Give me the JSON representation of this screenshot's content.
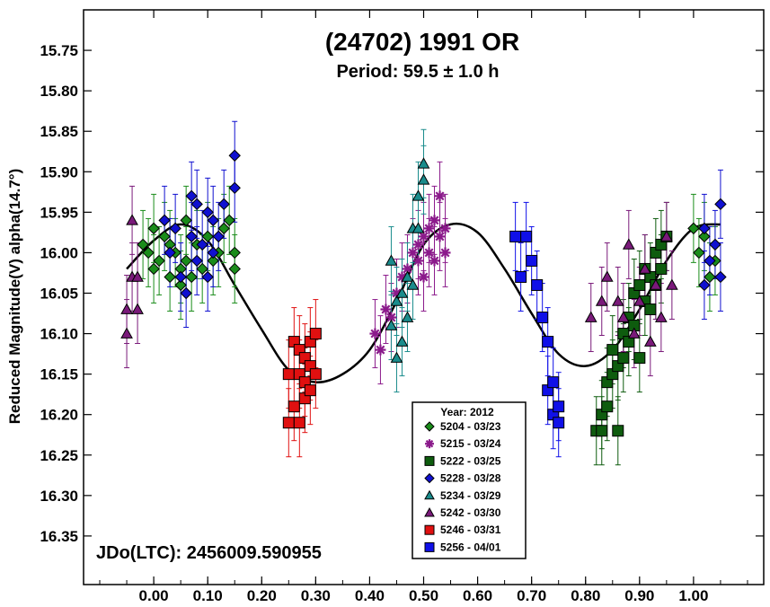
{
  "chart_data": {
    "type": "scatter",
    "title": "(24702) 1991 OR",
    "subtitle": "Period: 59.5 ± 1.0 h",
    "xlabel": "",
    "ylabel": "Reduced Magnitude(V) alpha(14.7°)",
    "annotation": "JDo(LTC): 2456009.590955",
    "xlim": [
      -0.13,
      1.13
    ],
    "ylim": [
      16.41,
      15.7
    ],
    "x_ticks": [
      "0.00",
      "0.10",
      "0.20",
      "0.30",
      "0.40",
      "0.50",
      "0.60",
      "0.70",
      "0.80",
      "0.90",
      "1.00"
    ],
    "y_ticks": [
      "15.75",
      "15.80",
      "15.85",
      "15.90",
      "15.95",
      "16.00",
      "16.05",
      "16.10",
      "16.15",
      "16.20",
      "16.25",
      "16.30",
      "16.35"
    ],
    "grid": false,
    "legend_position": "bottom-right",
    "legend_title": "Year: 2012",
    "fit_curve": {
      "x": [
        -0.05,
        0.0,
        0.05,
        0.1,
        0.15,
        0.2,
        0.25,
        0.3,
        0.35,
        0.4,
        0.45,
        0.5,
        0.55,
        0.6,
        0.65,
        0.7,
        0.75,
        0.8,
        0.85,
        0.9,
        0.95,
        1.0,
        1.05
      ],
      "y": [
        16.02,
        15.985,
        15.965,
        15.985,
        16.04,
        16.095,
        16.145,
        16.16,
        16.15,
        16.12,
        16.06,
        15.99,
        15.965,
        15.975,
        16.02,
        16.075,
        16.125,
        16.14,
        16.12,
        16.07,
        16.01,
        15.97,
        15.965
      ]
    },
    "series": [
      {
        "name": "5204 - 03/23",
        "color": "#1a8c1a",
        "marker": "diamond",
        "points": [
          [
            -0.02,
            15.99
          ],
          [
            -0.01,
            16.0
          ],
          [
            0.0,
            16.02
          ],
          [
            0.0,
            15.97
          ],
          [
            0.01,
            16.01
          ],
          [
            0.02,
            15.98
          ],
          [
            0.03,
            16.03
          ],
          [
            0.03,
            15.99
          ],
          [
            0.04,
            16.0
          ],
          [
            0.05,
            16.02
          ],
          [
            0.05,
            16.04
          ],
          [
            0.06,
            15.96
          ],
          [
            0.06,
            16.01
          ],
          [
            0.07,
            16.03
          ],
          [
            0.08,
            15.99
          ],
          [
            0.09,
            16.02
          ],
          [
            0.1,
            15.98
          ],
          [
            0.11,
            16.01
          ],
          [
            0.12,
            16.0
          ],
          [
            0.13,
            15.97
          ],
          [
            0.14,
            15.96
          ],
          [
            0.15,
            16.0
          ],
          [
            0.15,
            16.02
          ],
          [
            1.0,
            15.97
          ],
          [
            1.01,
            16.0
          ],
          [
            1.02,
            15.98
          ],
          [
            1.03,
            16.03
          ],
          [
            1.04,
            16.01
          ]
        ]
      },
      {
        "name": "5215 - 03/24",
        "color": "#8b1a8b",
        "marker": "asterisk",
        "points": [
          [
            0.41,
            16.1
          ],
          [
            0.42,
            16.12
          ],
          [
            0.43,
            16.07
          ],
          [
            0.44,
            16.08
          ],
          [
            0.45,
            16.05
          ],
          [
            0.46,
            16.03
          ],
          [
            0.47,
            16.02
          ],
          [
            0.48,
            16.0
          ],
          [
            0.49,
            15.99
          ],
          [
            0.49,
            16.01
          ],
          [
            0.5,
            15.98
          ],
          [
            0.5,
            16.03
          ],
          [
            0.51,
            15.97
          ],
          [
            0.51,
            16.0
          ],
          [
            0.52,
            15.96
          ],
          [
            0.52,
            16.01
          ],
          [
            0.53,
            15.93
          ],
          [
            0.53,
            15.98
          ],
          [
            0.54,
            15.97
          ],
          [
            0.54,
            16.0
          ]
        ]
      },
      {
        "name": "5222 - 03/25",
        "color": "#0e5c0e",
        "marker": "square",
        "points": [
          [
            0.82,
            16.22
          ],
          [
            0.83,
            16.2
          ],
          [
            0.83,
            16.22
          ],
          [
            0.84,
            16.16
          ],
          [
            0.84,
            16.19
          ],
          [
            0.85,
            16.12
          ],
          [
            0.85,
            16.15
          ],
          [
            0.86,
            16.14
          ],
          [
            0.86,
            16.22
          ],
          [
            0.87,
            16.1
          ],
          [
            0.87,
            16.13
          ],
          [
            0.88,
            16.08
          ],
          [
            0.88,
            16.11
          ],
          [
            0.89,
            16.05
          ],
          [
            0.89,
            16.09
          ],
          [
            0.9,
            16.04
          ],
          [
            0.9,
            16.13
          ],
          [
            0.91,
            16.06
          ],
          [
            0.91,
            16.02
          ],
          [
            0.92,
            16.03
          ],
          [
            0.92,
            16.07
          ],
          [
            0.93,
            16.0
          ],
          [
            0.93,
            16.04
          ],
          [
            0.94,
            15.99
          ],
          [
            0.94,
            16.02
          ],
          [
            0.95,
            15.98
          ]
        ]
      },
      {
        "name": "5228 - 03/28",
        "color": "#1010d0",
        "marker": "diamond",
        "points": [
          [
            0.02,
            15.96
          ],
          [
            0.03,
            16.0
          ],
          [
            0.04,
            15.97
          ],
          [
            0.05,
            16.03
          ],
          [
            0.06,
            16.05
          ],
          [
            0.07,
            15.98
          ],
          [
            0.07,
            15.93
          ],
          [
            0.08,
            15.94
          ],
          [
            0.08,
            16.01
          ],
          [
            0.09,
            15.99
          ],
          [
            0.1,
            15.95
          ],
          [
            0.1,
            16.03
          ],
          [
            0.11,
            15.96
          ],
          [
            0.11,
            16.0
          ],
          [
            0.12,
            15.98
          ],
          [
            0.13,
            15.94
          ],
          [
            0.15,
            15.88
          ],
          [
            0.15,
            15.92
          ],
          [
            1.02,
            16.04
          ],
          [
            1.02,
            15.97
          ],
          [
            1.03,
            16.01
          ],
          [
            1.04,
            15.99
          ],
          [
            1.05,
            16.03
          ],
          [
            1.05,
            15.94
          ]
        ]
      },
      {
        "name": "5234 - 03/29",
        "color": "#1a8c8c",
        "marker": "triangle",
        "points": [
          [
            0.44,
            16.01
          ],
          [
            0.44,
            16.09
          ],
          [
            0.45,
            16.13
          ],
          [
            0.45,
            16.06
          ],
          [
            0.46,
            16.11
          ],
          [
            0.46,
            16.05
          ],
          [
            0.47,
            16.08
          ],
          [
            0.47,
            16.03
          ],
          [
            0.48,
            15.97
          ],
          [
            0.48,
            16.04
          ],
          [
            0.49,
            15.93
          ],
          [
            0.49,
            15.97
          ],
          [
            0.5,
            15.91
          ],
          [
            0.5,
            15.89
          ]
        ]
      },
      {
        "name": "5242 - 03/30",
        "color": "#7a1a7a",
        "marker": "triangle",
        "points": [
          [
            -0.05,
            16.07
          ],
          [
            -0.05,
            16.1
          ],
          [
            -0.04,
            15.96
          ],
          [
            -0.04,
            16.03
          ],
          [
            -0.03,
            16.07
          ],
          [
            -0.03,
            16.03
          ],
          [
            0.81,
            16.08
          ],
          [
            0.83,
            16.06
          ],
          [
            0.84,
            16.03
          ],
          [
            0.86,
            16.06
          ],
          [
            0.87,
            16.08
          ],
          [
            0.88,
            15.99
          ],
          [
            0.89,
            16.1
          ],
          [
            0.9,
            16.06
          ],
          [
            0.91,
            16.02
          ],
          [
            0.92,
            16.11
          ],
          [
            0.93,
            16.04
          ],
          [
            0.94,
            16.08
          ],
          [
            0.95,
            15.98
          ],
          [
            0.96,
            16.04
          ]
        ]
      },
      {
        "name": "5246 - 03/31",
        "color": "#e01010",
        "marker": "square",
        "points": [
          [
            0.25,
            16.21
          ],
          [
            0.25,
            16.15
          ],
          [
            0.26,
            16.19
          ],
          [
            0.26,
            16.11
          ],
          [
            0.27,
            16.21
          ],
          [
            0.27,
            16.15
          ],
          [
            0.27,
            16.12
          ],
          [
            0.28,
            16.18
          ],
          [
            0.28,
            16.13
          ],
          [
            0.28,
            16.16
          ],
          [
            0.29,
            16.11
          ],
          [
            0.29,
            16.14
          ],
          [
            0.29,
            16.17
          ],
          [
            0.3,
            16.1
          ],
          [
            0.3,
            16.15
          ]
        ]
      },
      {
        "name": "5256 - 04/01",
        "color": "#1010e8",
        "marker": "square",
        "points": [
          [
            0.67,
            15.98
          ],
          [
            0.68,
            16.03
          ],
          [
            0.69,
            15.98
          ],
          [
            0.7,
            16.01
          ],
          [
            0.71,
            16.04
          ],
          [
            0.72,
            16.08
          ],
          [
            0.73,
            16.11
          ],
          [
            0.73,
            16.17
          ],
          [
            0.74,
            16.2
          ],
          [
            0.74,
            16.16
          ],
          [
            0.75,
            16.19
          ],
          [
            0.75,
            16.21
          ]
        ]
      }
    ]
  }
}
